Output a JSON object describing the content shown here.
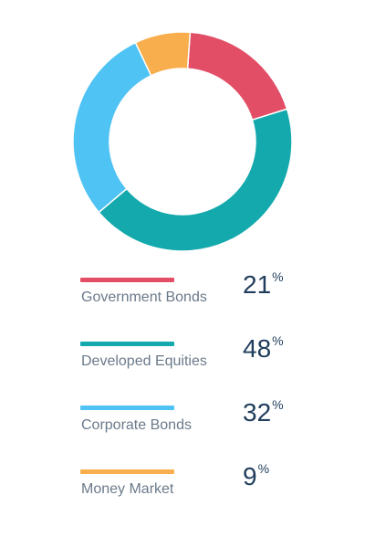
{
  "chart_data": {
    "type": "pie",
    "variant": "donut",
    "categories": [
      "Government Bonds",
      "Developed Equities",
      "Corporate Bonds",
      "Money Market"
    ],
    "values": [
      21,
      48,
      32,
      9
    ],
    "unit": "%",
    "colors": [
      "#e34e67",
      "#14a9ad",
      "#4fc3f4",
      "#f8ae4c"
    ],
    "legend_position": "below"
  }
}
